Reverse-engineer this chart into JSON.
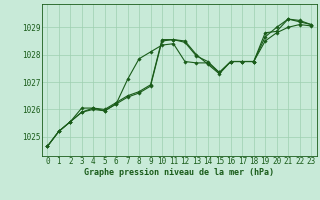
{
  "title": "Graphe pression niveau de la mer (hPa)",
  "bg_color": "#c8ead8",
  "line_color": "#1a5c1a",
  "grid_color": "#9ecfb0",
  "x_ticks": [
    0,
    1,
    2,
    3,
    4,
    5,
    6,
    7,
    8,
    9,
    10,
    11,
    12,
    13,
    14,
    15,
    16,
    17,
    18,
    19,
    20,
    21,
    22,
    23
  ],
  "y_ticks": [
    1025,
    1026,
    1027,
    1028,
    1029
  ],
  "ylim": [
    1024.3,
    1029.85
  ],
  "xlim": [
    -0.5,
    23.5
  ],
  "series1": [
    1024.65,
    1025.2,
    1025.55,
    1025.9,
    1026.05,
    1026.0,
    1026.25,
    1026.5,
    1026.65,
    1026.9,
    1028.55,
    1028.55,
    1028.45,
    1027.95,
    1027.75,
    1027.35,
    1027.75,
    1027.75,
    1027.75,
    1028.65,
    1029.0,
    1029.3,
    1029.2,
    1029.1
  ],
  "series2": [
    1024.65,
    1025.2,
    1025.55,
    1026.05,
    1026.05,
    1025.95,
    1026.2,
    1026.45,
    1026.6,
    1026.85,
    1028.5,
    1028.55,
    1028.5,
    1028.0,
    1027.65,
    1027.3,
    1027.75,
    1027.75,
    1027.75,
    1028.8,
    1028.85,
    1029.3,
    1029.25,
    1029.1
  ],
  "series3": [
    1024.65,
    1025.2,
    1025.55,
    1025.9,
    1026.0,
    1025.95,
    1026.2,
    1027.1,
    1027.85,
    1028.1,
    1028.35,
    1028.4,
    1027.75,
    1027.7,
    1027.7,
    1027.35,
    1027.75,
    1027.75,
    1027.75,
    1028.5,
    1028.8,
    1029.0,
    1029.1,
    1029.05
  ],
  "tick_fontsize": 5.5,
  "label_fontsize": 6.0
}
